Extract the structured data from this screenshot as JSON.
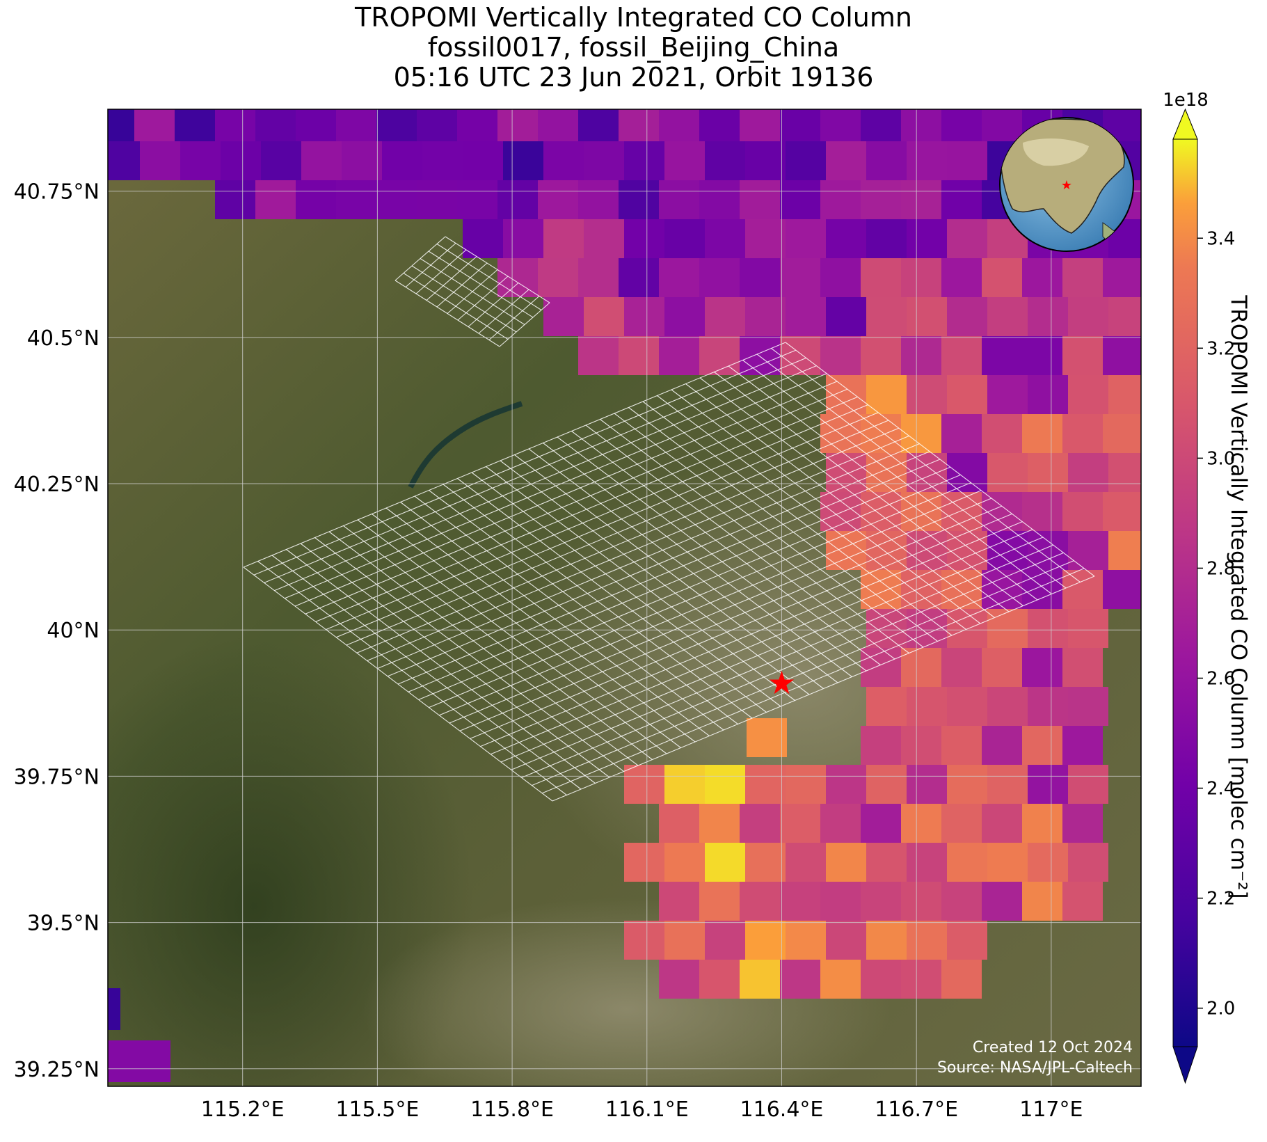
{
  "title": {
    "line1": "TROPOMI Vertically Integrated CO Column",
    "line2": "fossil0017, fossil_Beijing_China",
    "line3": "05:16 UTC 23 Jun 2021, Orbit 19136"
  },
  "map": {
    "lon_range": [
      114.9,
      117.2
    ],
    "lat_range": [
      39.22,
      40.89
    ],
    "x_ticks": [
      {
        "value": 115.2,
        "label": "115.2°E"
      },
      {
        "value": 115.5,
        "label": "115.5°E"
      },
      {
        "value": 115.8,
        "label": "115.8°E"
      },
      {
        "value": 116.1,
        "label": "116.1°E"
      },
      {
        "value": 116.4,
        "label": "116.4°E"
      },
      {
        "value": 116.7,
        "label": "116.7°E"
      },
      {
        "value": 117.0,
        "label": "117°E"
      }
    ],
    "y_ticks": [
      {
        "value": 40.75,
        "label": "40.75°N"
      },
      {
        "value": 40.5,
        "label": "40.5°N"
      },
      {
        "value": 40.25,
        "label": "40.25°N"
      },
      {
        "value": 40.0,
        "label": "40°N"
      },
      {
        "value": 39.75,
        "label": "39.75°N"
      },
      {
        "value": 39.5,
        "label": "39.5°N"
      },
      {
        "value": 39.25,
        "label": "39.25°N"
      }
    ],
    "grid": true,
    "basemap": "satellite imagery",
    "site_marker": {
      "lon": 116.4,
      "lat": 39.91,
      "symbol": "star",
      "color": "#ff0000"
    },
    "inset_globe": {
      "position": "top-right",
      "marker": "star"
    }
  },
  "colorbar": {
    "label": "TROPOMI Vertically Integrated CO Column [molec cm⁻²]",
    "multiplier": "1e18",
    "min": 1.93,
    "max": 3.58,
    "ticks": [
      {
        "value": 2.0,
        "label": "2.0"
      },
      {
        "value": 2.2,
        "label": "2.2"
      },
      {
        "value": 2.4,
        "label": "2.4"
      },
      {
        "value": 2.6,
        "label": "2.6"
      },
      {
        "value": 2.8,
        "label": "2.8"
      },
      {
        "value": 3.0,
        "label": "3.0"
      },
      {
        "value": 3.2,
        "label": "3.2"
      },
      {
        "value": 3.4,
        "label": "3.4"
      }
    ],
    "colormap": "plasma",
    "extend": "both"
  },
  "credit": {
    "created": "Created 12 Oct 2024",
    "source": "Source: NASA/JPL-Caltech"
  },
  "colors": {
    "marker": "#ff0000",
    "grid": "#d0d0d0",
    "overlay_grid": "#ffffff"
  }
}
